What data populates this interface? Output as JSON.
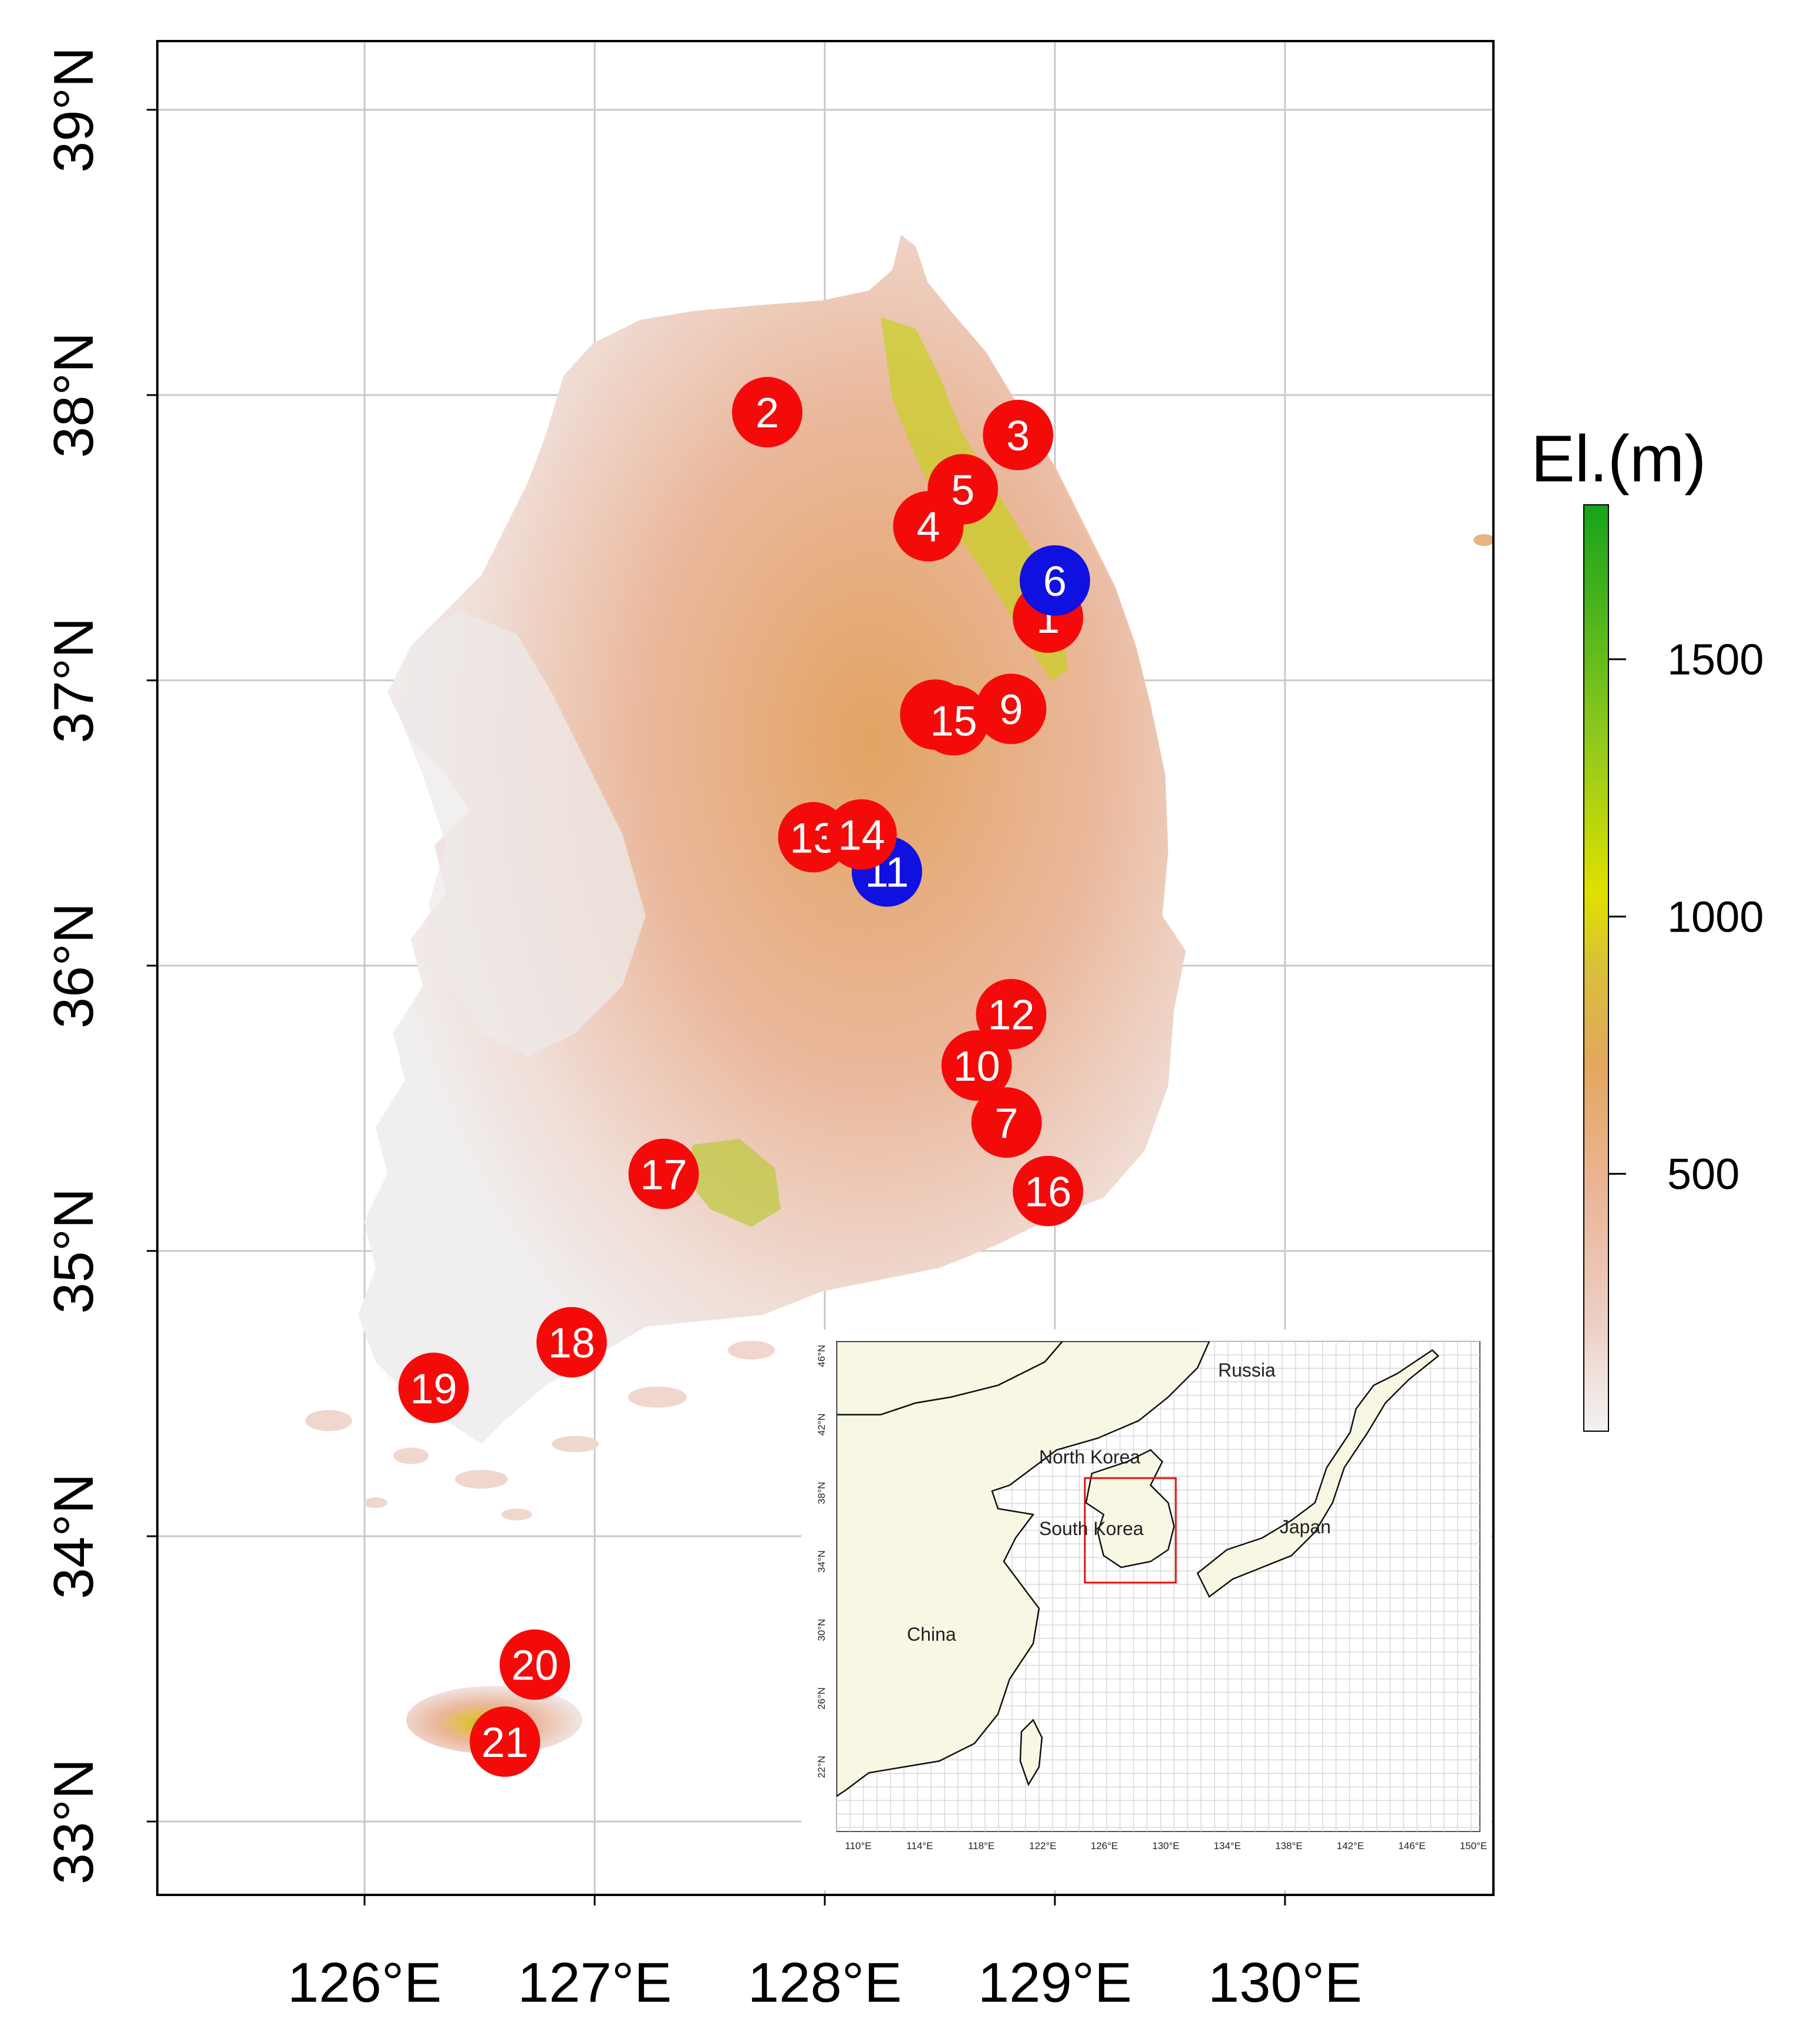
{
  "axes": {
    "lat_ticks": [
      "33°N",
      "34°N",
      "35°N",
      "36°N",
      "37°N",
      "38°N",
      "39°N"
    ],
    "lon_ticks": [
      "126°E",
      "127°E",
      "128°E",
      "129°E",
      "130°E"
    ]
  },
  "legend": {
    "title": "El.(m)",
    "ticks": [
      "500",
      "1000",
      "1500"
    ],
    "range_m": [
      0,
      1800
    ],
    "tick_values_m": [
      500,
      1000,
      1500
    ],
    "colors": [
      "#f2f2f2",
      "#eab597",
      "#e2a85c",
      "#d4c33a",
      "#e0e000",
      "#8ec81e",
      "#16a41a"
    ]
  },
  "sites": [
    {
      "label": "1",
      "lon": 128.97,
      "lat": 37.22,
      "color": "red"
    },
    {
      "label": "2",
      "lon": 127.75,
      "lat": 37.94,
      "color": "red"
    },
    {
      "label": "3",
      "lon": 128.84,
      "lat": 37.86,
      "color": "red"
    },
    {
      "label": "4",
      "lon": 128.45,
      "lat": 37.54,
      "color": "red"
    },
    {
      "label": "5",
      "lon": 128.6,
      "lat": 37.67,
      "color": "red"
    },
    {
      "label": "6",
      "lon": 129.0,
      "lat": 37.35,
      "color": "blue"
    },
    {
      "label": "7",
      "lon": 128.79,
      "lat": 35.45,
      "color": "red"
    },
    {
      "label": "8",
      "lon": 128.48,
      "lat": 36.88,
      "color": "red"
    },
    {
      "label": "9",
      "lon": 128.81,
      "lat": 36.9,
      "color": "red"
    },
    {
      "label": "10",
      "lon": 128.66,
      "lat": 35.65,
      "color": "red"
    },
    {
      "label": "11",
      "lon": 128.27,
      "lat": 36.33,
      "color": "blue"
    },
    {
      "label": "12",
      "lon": 128.81,
      "lat": 35.83,
      "color": "red"
    },
    {
      "label": "13",
      "lon": 127.95,
      "lat": 36.45,
      "color": "red"
    },
    {
      "label": "14",
      "lon": 128.16,
      "lat": 36.46,
      "color": "red"
    },
    {
      "label": "15",
      "lon": 128.56,
      "lat": 36.86,
      "color": "red"
    },
    {
      "label": "16",
      "lon": 128.97,
      "lat": 35.21,
      "color": "red"
    },
    {
      "label": "17",
      "lon": 127.3,
      "lat": 35.27,
      "color": "red"
    },
    {
      "label": "18",
      "lon": 126.9,
      "lat": 34.68,
      "color": "red"
    },
    {
      "label": "19",
      "lon": 126.3,
      "lat": 34.52,
      "color": "red"
    },
    {
      "label": "20",
      "lon": 126.74,
      "lat": 33.55,
      "color": "red"
    },
    {
      "label": "21",
      "lon": 126.61,
      "lat": 33.28,
      "color": "red"
    }
  ],
  "site_colors": {
    "red": "#f50a0a",
    "blue": "#1010e0"
  },
  "inset": {
    "labels": {
      "russia": "Russia",
      "north_korea": "North Korea",
      "south_korea": "South Korea",
      "japan": "Japan",
      "china": "China"
    },
    "lat_ticks": [
      "22°N",
      "26°N",
      "30°N",
      "34°N",
      "38°N",
      "42°N",
      "46°N"
    ],
    "lon_ticks": [
      "110°E",
      "114°E",
      "118°E",
      "122°E",
      "126°E",
      "130°E",
      "134°E",
      "138°E",
      "142°E",
      "146°E",
      "150°E"
    ],
    "land_color": "#f7f7e4"
  }
}
